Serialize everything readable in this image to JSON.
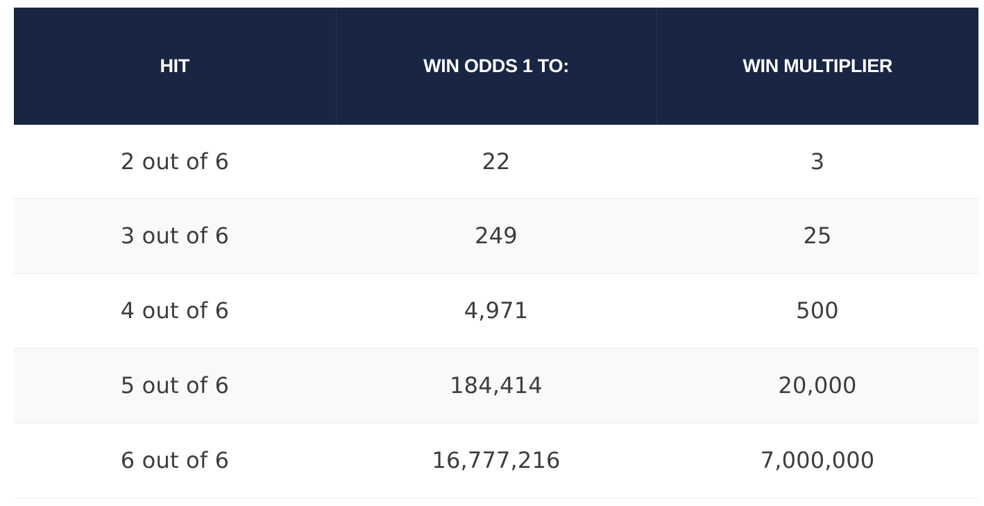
{
  "table": {
    "headers": [
      "HIT",
      "WIN ODDS 1 TO:",
      "WIN MULTIPLIER"
    ],
    "rows": [
      [
        "2 out of 6",
        "22",
        "3"
      ],
      [
        "3 out of 6",
        "249",
        "25"
      ],
      [
        "4 out of 6",
        "4,971",
        "500"
      ],
      [
        "5 out of 6",
        "184,414",
        "20,000"
      ],
      [
        "6 out of 6",
        "16,777,216",
        "7,000,000"
      ]
    ]
  },
  "colors": {
    "header_background": "#182644",
    "header_text": "#ffffff",
    "body_text": "#3d3d3d",
    "stripe_background": "#f9f9f9"
  }
}
